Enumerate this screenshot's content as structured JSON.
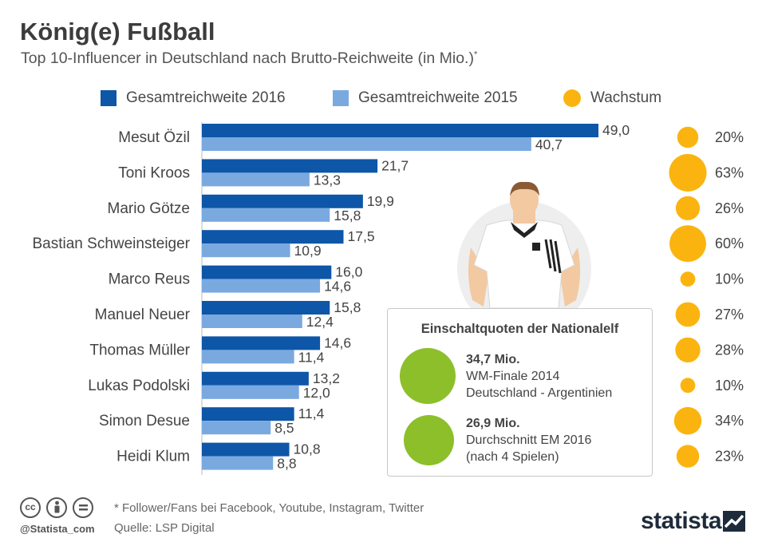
{
  "header": {
    "title": "König(e) Fußball",
    "subtitle": "Top 10-Influencer in Deutschland nach Brutto-Reichweite (in Mio.)",
    "subtitle_mark": "*"
  },
  "legend": {
    "series_2016": "Gesamtreichweite 2016",
    "series_2015": "Gesamtreichweite 2015",
    "growth": "Wachstum"
  },
  "colors": {
    "series_2016": "#0d56a8",
    "series_2015": "#7aa9e0",
    "growth": "#fbb40f",
    "info_circle": "#8cbf2a"
  },
  "chart_data": {
    "type": "bar",
    "orientation": "horizontal",
    "title": "König(e) Fußball",
    "subtitle": "Top 10-Influencer in Deutschland nach Brutto-Reichweite (in Mio.)*",
    "categories": [
      "Mesut Özil",
      "Toni Kroos",
      "Mario Götze",
      "Bastian Schweinsteiger",
      "Marco Reus",
      "Manuel Neuer",
      "Thomas Müller",
      "Lukas Podolski",
      "Simon Desue",
      "Heidi Klum"
    ],
    "series": [
      {
        "name": "Gesamtreichweite 2016",
        "values": [
          49.0,
          21.7,
          19.9,
          17.5,
          16.0,
          15.8,
          14.6,
          13.2,
          11.4,
          10.8
        ],
        "labels": [
          "49,0",
          "21,7",
          "19,9",
          "17,5",
          "16,0",
          "15,8",
          "14,6",
          "13,2",
          "11,4",
          "10,8"
        ]
      },
      {
        "name": "Gesamtreichweite 2015",
        "values": [
          40.7,
          13.3,
          15.8,
          10.9,
          14.6,
          12.4,
          11.4,
          12.0,
          8.5,
          8.8
        ],
        "labels": [
          "40,7",
          "13,3",
          "15,8",
          "10,9",
          "14,6",
          "12,4",
          "11,4",
          "12,0",
          "8,5",
          "8,8"
        ]
      }
    ],
    "growth": {
      "name": "Wachstum",
      "values": [
        20,
        63,
        26,
        60,
        10,
        27,
        28,
        10,
        34,
        23
      ],
      "labels": [
        "20%",
        "63%",
        "26%",
        "60%",
        "10%",
        "27%",
        "28%",
        "10%",
        "34%",
        "23%"
      ]
    },
    "xlim": [
      0,
      49
    ],
    "unit": "Mio."
  },
  "infobox": {
    "title": "Einschaltquoten der Nationalelf",
    "items": [
      {
        "value": 34.7,
        "value_label": "34,7 Mio.",
        "line1": "WM-Finale 2014",
        "line2": "Deutschland - Argentinien"
      },
      {
        "value": 26.9,
        "value_label": "26,9 Mio.",
        "line1": "Durchschnitt EM 2016",
        "line2": "(nach 4 Spielen)"
      }
    ]
  },
  "footer": {
    "note": "* Follower/Fans bei Facebook, Youtube, Instagram, Twitter",
    "source": "Quelle: LSP Digital",
    "handle": "@Statista_com",
    "brand": "statista",
    "cc_icons": [
      "cc-icon",
      "attribution-icon",
      "no-derivatives-icon"
    ]
  }
}
